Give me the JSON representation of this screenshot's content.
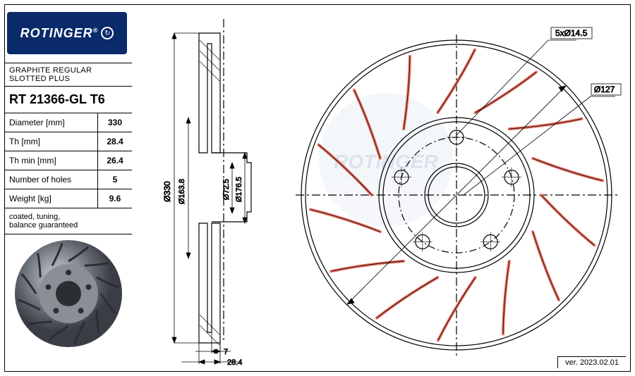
{
  "logo": {
    "text": "ROTINGER",
    "registered": "®"
  },
  "spec": {
    "header": "GRAPHITE REGULAR SLOTTED PLUS",
    "part_number": "RT 21366-GL T6",
    "rows": [
      {
        "label": "Diameter [mm]",
        "value": "330"
      },
      {
        "label": "Th [mm]",
        "value": "28.4"
      },
      {
        "label": "Th min [mm]",
        "value": "26.4"
      },
      {
        "label": "Number of holes",
        "value": "5"
      },
      {
        "label": "Weight [kg]",
        "value": "9.6"
      }
    ],
    "note": "coated, tuning,\nbalance guaranteed"
  },
  "callouts": {
    "holes": "5xØ14.5",
    "bolt_circle": "Ø127"
  },
  "side_dims": {
    "outer_d": "Ø330",
    "d1": "Ø163.8",
    "d2": "Ø72.5",
    "d3": "Ø176.5",
    "h1": "7",
    "h2": "28.4"
  },
  "front_view": {
    "outer_r": 220,
    "hub_r": 110,
    "bore_r": 45,
    "bolt_circle_r": 82,
    "bolt_hole_r": 10,
    "n_bolt": 5,
    "n_slots": 14,
    "slot_color": "#e97060",
    "line_color": "#000000",
    "watermark_color": "#e9eef4"
  },
  "version": "ver. 2023.02.01"
}
